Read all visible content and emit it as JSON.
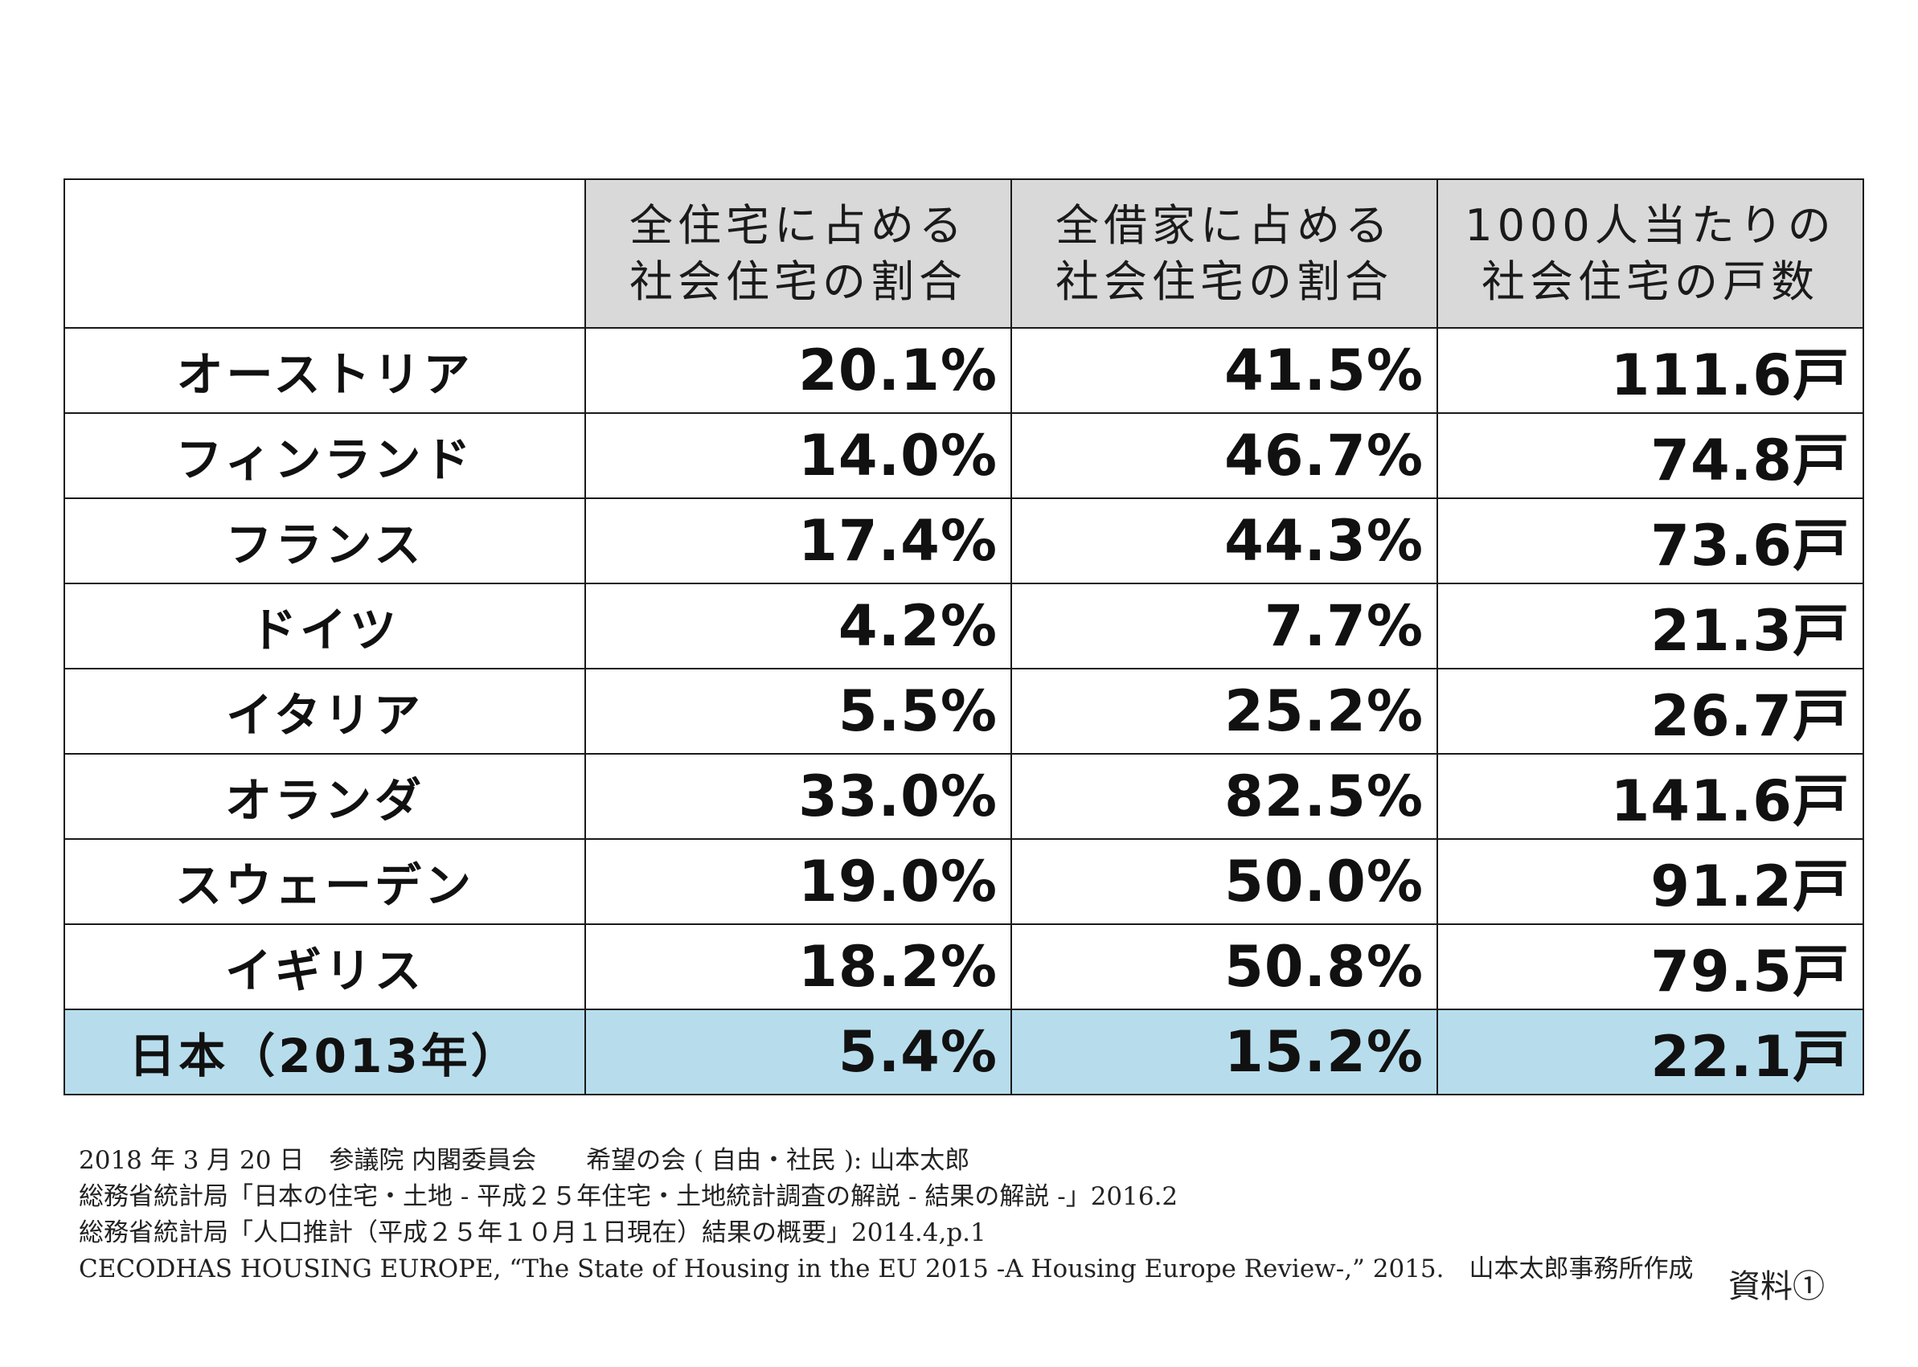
{
  "table": {
    "headers": [
      {
        "line1": "全住宅に占める",
        "line2": "社会住宅の割合"
      },
      {
        "line1": "全借家に占める",
        "line2": "社会住宅の割合"
      },
      {
        "line1": "1000人当たりの",
        "line2": "社会住宅の戸数"
      }
    ],
    "rows": [
      {
        "country": "オーストリア",
        "v1": "20.1%",
        "v2": "41.5%",
        "v3": "111.6戸"
      },
      {
        "country": "フィンランド",
        "v1": "14.0%",
        "v2": "46.7%",
        "v3": "74.8戸"
      },
      {
        "country": "フランス",
        "v1": "17.4%",
        "v2": "44.3%",
        "v3": "73.6戸"
      },
      {
        "country": "ドイツ",
        "v1": "4.2%",
        "v2": "7.7%",
        "v3": "21.3戸"
      },
      {
        "country": "イタリア",
        "v1": "5.5%",
        "v2": "25.2%",
        "v3": "26.7戸"
      },
      {
        "country": "オランダ",
        "v1": "33.0%",
        "v2": "82.5%",
        "v3": "141.6戸"
      },
      {
        "country": "スウェーデン",
        "v1": "19.0%",
        "v2": "50.0%",
        "v3": "91.2戸"
      },
      {
        "country": "イギリス",
        "v1": "18.2%",
        "v2": "50.8%",
        "v3": "79.5戸"
      },
      {
        "country": "日本（2013年）",
        "v1": "5.4%",
        "v2": "15.2%",
        "v3": "22.1戸"
      }
    ],
    "highlight_color": "#b7dded",
    "header_color": "#d9d9d9"
  },
  "footer": {
    "line1": "2018 年 3 月 20 日　参議院 内閣委員会　　希望の会 ( 自由・社民 ): 山本太郎",
    "line2": "総務省統計局「日本の住宅・土地 - 平成２５年住宅・土地統計調査の解説 - 結果の解説 -」2016.2",
    "line3": "総務省統計局「人口推計（平成２５年１０月１日現在）結果の概要」2014.4,p.1",
    "line4": "CECODHAS HOUSING EUROPE, “The State of Housing in the EU 2015 -A Housing Europe Review-,”  2015.　山本太郎事務所作成"
  },
  "doc_label": "資料①"
}
